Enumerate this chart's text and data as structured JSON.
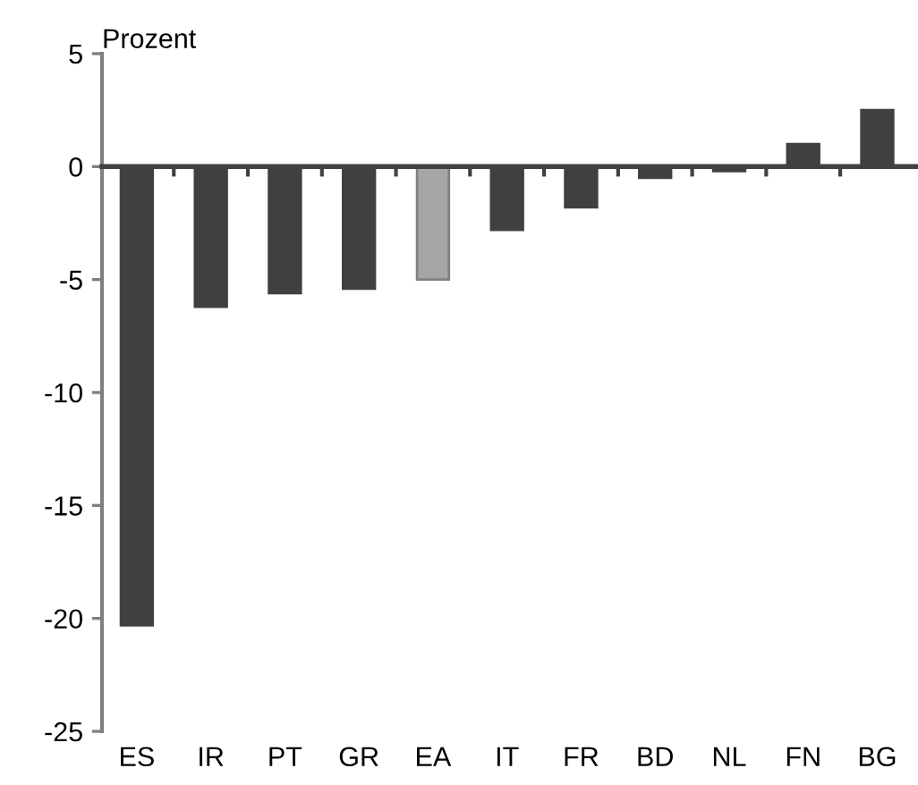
{
  "chart_data": {
    "type": "bar",
    "ylabel": "Prozent",
    "categories": [
      "ES",
      "IR",
      "PT",
      "GR",
      "EA",
      "IT",
      "FR",
      "BD",
      "NL",
      "FN",
      "BG"
    ],
    "values": [
      -20.3,
      -6.2,
      -5.6,
      -5.4,
      -5.0,
      -2.8,
      -1.8,
      -0.5,
      -0.2,
      1.0,
      2.5
    ],
    "colors": [
      "#404040",
      "#404040",
      "#404040",
      "#404040",
      "#a6a6a6",
      "#404040",
      "#404040",
      "#404040",
      "#404040",
      "#404040",
      "#404040"
    ],
    "ylim": [
      -25,
      5
    ],
    "yticks": [
      -25,
      -20,
      -15,
      -10,
      -5,
      0,
      5
    ]
  }
}
